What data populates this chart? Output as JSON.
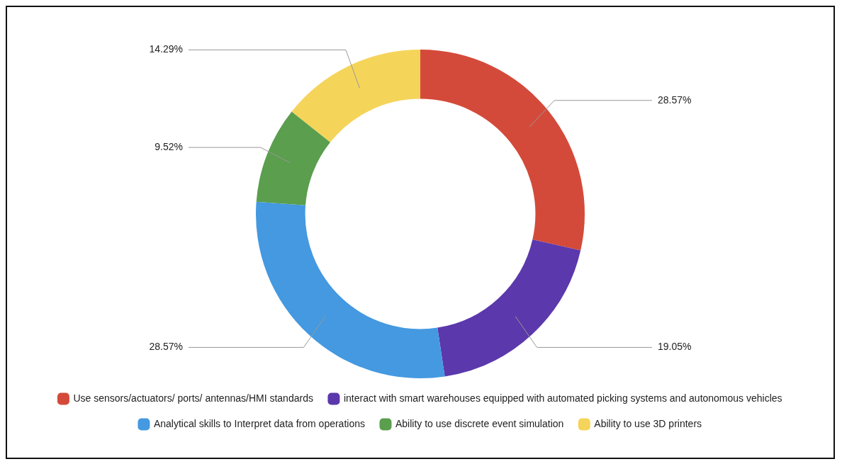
{
  "chart_data": {
    "type": "donut",
    "categories": [
      "Use sensors/actuators/ ports/ antennas/HMI standards",
      "interact with smart warehouses equipped with automated picking systems and autonomous vehicles",
      "Analytical skills to Interpret data from operations",
      "Ability to use discrete event simulation",
      "Ability to use 3D printers"
    ],
    "values": [
      28.57,
      19.05,
      28.57,
      9.52,
      14.29
    ],
    "colors": [
      "#d44a3a",
      "#5b38ab",
      "#4499e0",
      "#5a9e4e",
      "#f5d45a"
    ],
    "value_labels": [
      "28.57%",
      "19.05%",
      "28.57%",
      "9.52%",
      "14.29%"
    ],
    "legend": "bottom"
  }
}
